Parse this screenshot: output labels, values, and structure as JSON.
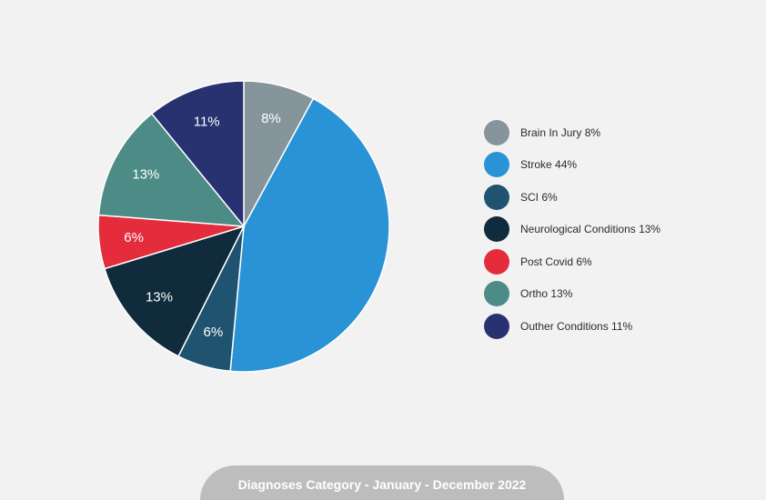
{
  "chart_data": {
    "type": "pie",
    "title": "Diagnoses Category - January - December 2022",
    "slices": [
      {
        "name": "Brain In Jury",
        "value": 8,
        "label": "8%",
        "legend_label": "Brain In Jury 8%",
        "color": "#86959b"
      },
      {
        "name": "Stroke",
        "value": 44,
        "label": "",
        "legend_label": "Stroke 44%",
        "color": "#2a93d5"
      },
      {
        "name": "SCI",
        "value": 6,
        "label": "6%",
        "legend_label": "SCI 6%",
        "color": "#1f5370"
      },
      {
        "name": "Neurological Conditions",
        "value": 13,
        "label": "13%",
        "legend_label": "Neurological Conditions 13%",
        "color": "#0f2b3c"
      },
      {
        "name": "Post Covid",
        "value": 6,
        "label": "6%",
        "legend_label": "Post Covid 6%",
        "color": "#e42c3c"
      },
      {
        "name": "Ortho",
        "value": 13,
        "label": "13%",
        "legend_label": "Ortho 13%",
        "color": "#4d8b86"
      },
      {
        "name": "Outher Conditions",
        "value": 11,
        "label": "11%",
        "legend_label": "Outher Conditions 11%",
        "color": "#283271"
      }
    ],
    "legend_position": "right",
    "slice_label_color": "#ffffff"
  },
  "footer": {
    "title": "Diagnoses Category - January - December 2022",
    "background": "#bdbdbd"
  }
}
